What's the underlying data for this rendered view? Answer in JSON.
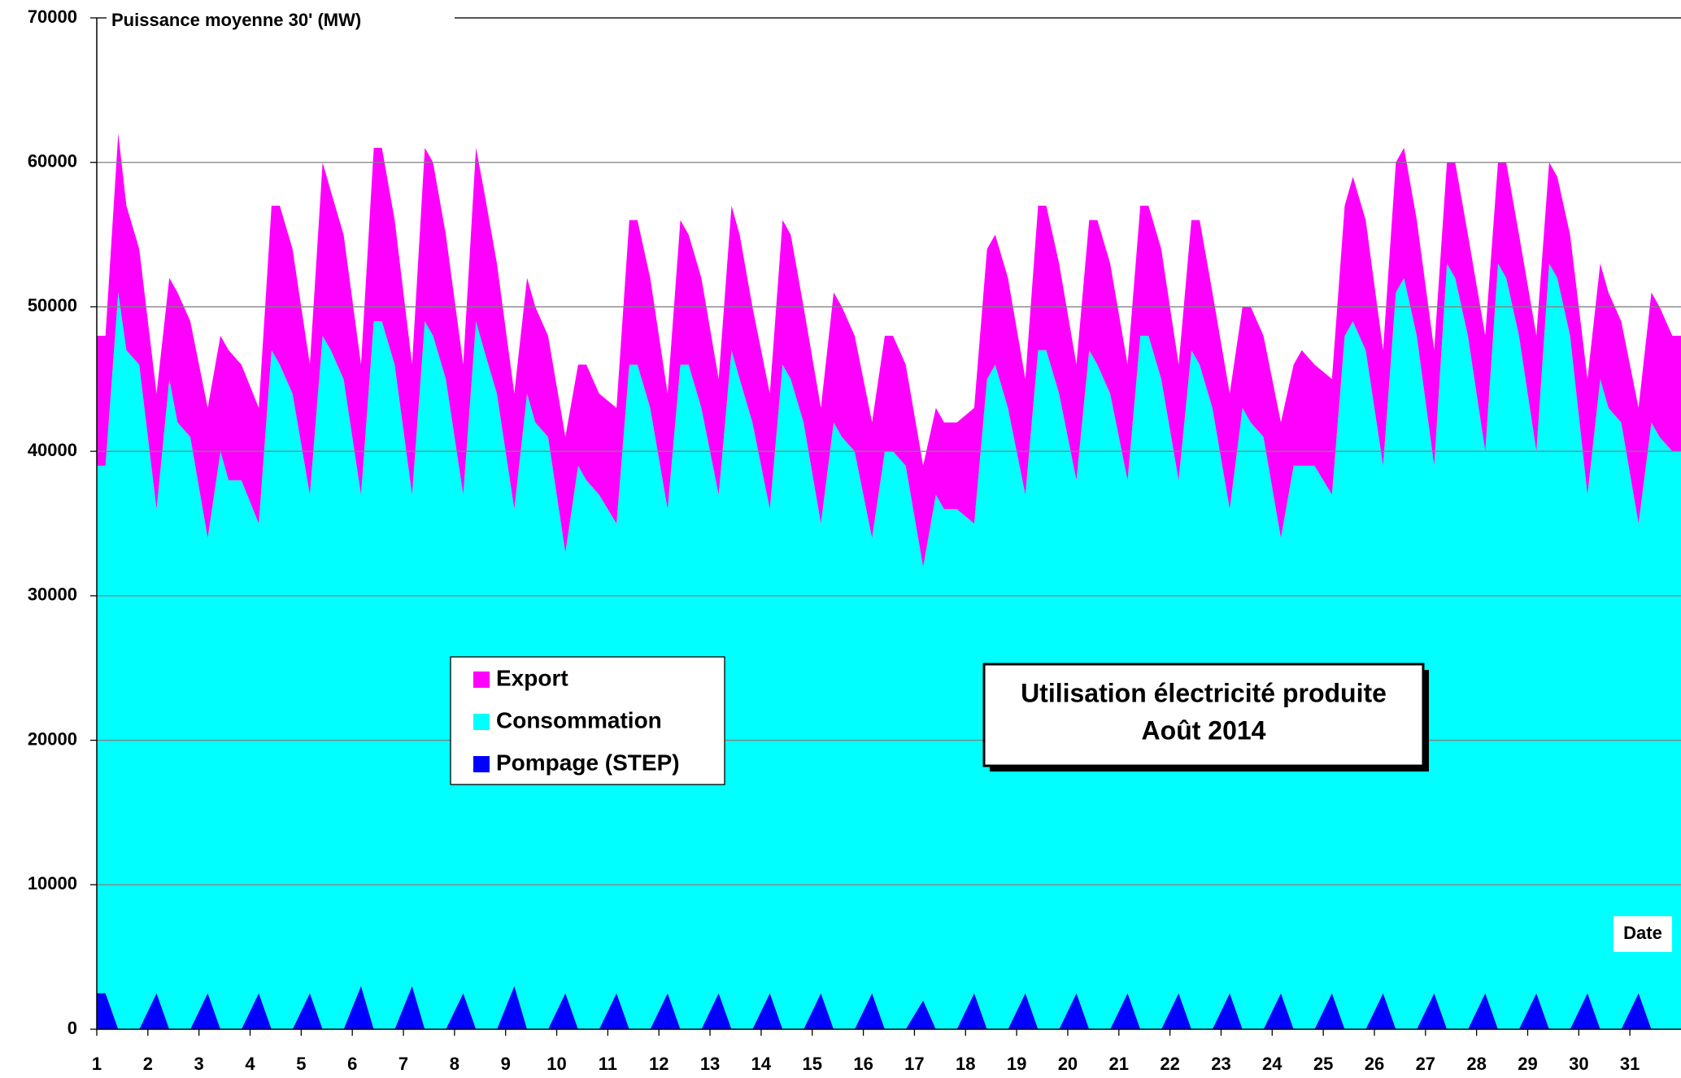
{
  "chart_data": {
    "type": "stacked-area",
    "title": "Utilisation électricité produite",
    "subtitle": "Août 2014",
    "y_label": "Puissance moyenne 30' (MW)",
    "x_label": "Date",
    "xlim": [
      1,
      32
    ],
    "xticks": [
      1,
      2,
      3,
      4,
      5,
      6,
      7,
      8,
      9,
      10,
      11,
      12,
      13,
      14,
      15,
      16,
      17,
      18,
      19,
      20,
      21,
      22,
      23,
      24,
      25,
      26,
      27,
      28,
      29,
      30,
      31
    ],
    "ylim": [
      0,
      70000
    ],
    "yticks": [
      0,
      10000,
      20000,
      30000,
      40000,
      50000,
      60000,
      70000
    ],
    "grid": true,
    "x": [
      1.17,
      1.42,
      1.58,
      1.83,
      2.17,
      2.42,
      2.58,
      2.83,
      3.17,
      3.42,
      3.58,
      3.83,
      4.17,
      4.42,
      4.58,
      4.83,
      5.17,
      5.42,
      5.58,
      5.83,
      6.17,
      6.42,
      6.58,
      6.83,
      7.17,
      7.42,
      7.58,
      7.83,
      8.17,
      8.42,
      8.58,
      8.83,
      9.17,
      9.42,
      9.58,
      9.83,
      10.17,
      10.42,
      10.58,
      10.83,
      11.17,
      11.42,
      11.58,
      11.83,
      12.17,
      12.42,
      12.58,
      12.83,
      13.17,
      13.42,
      13.58,
      13.83,
      14.17,
      14.42,
      14.58,
      14.83,
      15.17,
      15.42,
      15.58,
      15.83,
      16.17,
      16.42,
      16.58,
      16.83,
      17.17,
      17.42,
      17.58,
      17.83,
      18.17,
      18.42,
      18.58,
      18.83,
      19.17,
      19.42,
      19.58,
      19.83,
      20.17,
      20.42,
      20.58,
      20.83,
      21.17,
      21.42,
      21.58,
      21.83,
      22.17,
      22.42,
      22.58,
      22.83,
      23.17,
      23.42,
      23.58,
      23.83,
      24.17,
      24.42,
      24.58,
      24.83,
      25.17,
      25.42,
      25.58,
      25.83,
      26.17,
      26.42,
      26.58,
      26.83,
      27.17,
      27.42,
      27.58,
      27.83,
      28.17,
      28.42,
      28.58,
      28.83,
      29.17,
      29.42,
      29.58,
      29.83,
      30.17,
      30.42,
      30.58,
      30.83,
      31.17,
      31.42,
      31.58,
      31.83
    ],
    "series": [
      {
        "name": "Pompage (STEP)",
        "color": "#0000ff",
        "values": [
          2500,
          0,
          0,
          0,
          2500,
          0,
          0,
          0,
          2500,
          0,
          0,
          0,
          2500,
          0,
          0,
          0,
          2500,
          0,
          0,
          0,
          3000,
          0,
          0,
          0,
          3000,
          0,
          0,
          0,
          2500,
          0,
          0,
          0,
          3000,
          0,
          0,
          0,
          2500,
          0,
          0,
          0,
          2500,
          0,
          0,
          0,
          2500,
          0,
          0,
          0,
          2500,
          0,
          0,
          0,
          2500,
          0,
          0,
          0,
          2500,
          0,
          0,
          0,
          2500,
          0,
          0,
          0,
          2000,
          0,
          0,
          0,
          2500,
          0,
          0,
          0,
          2500,
          0,
          0,
          0,
          2500,
          0,
          0,
          0,
          2500,
          0,
          0,
          0,
          2500,
          0,
          0,
          0,
          2500,
          0,
          0,
          0,
          2500,
          0,
          0,
          0,
          2500,
          0,
          0,
          0,
          2500,
          0,
          0,
          0,
          2500,
          0,
          0,
          0,
          2500,
          0,
          0,
          0,
          2500,
          0,
          0,
          0,
          2500,
          0,
          0,
          0,
          2500,
          0,
          0,
          0
        ]
      },
      {
        "name": "Consommation",
        "color": "#00ffff",
        "values": [
          36500,
          51000,
          47000,
          46000,
          33500,
          45000,
          42000,
          41000,
          31500,
          40000,
          38000,
          38000,
          32500,
          47000,
          46000,
          44000,
          34500,
          48000,
          47000,
          45000,
          34000,
          49000,
          49000,
          46000,
          34000,
          49000,
          48000,
          45000,
          34500,
          49000,
          47000,
          44000,
          33000,
          44000,
          42000,
          41000,
          30500,
          39000,
          38000,
          37000,
          32500,
          46000,
          46000,
          43000,
          33500,
          46000,
          46000,
          43000,
          34500,
          47000,
          45000,
          42000,
          33500,
          46000,
          45000,
          42000,
          32500,
          42000,
          41000,
          40000,
          31500,
          40000,
          40000,
          39000,
          30000,
          37000,
          36000,
          36000,
          32500,
          45000,
          46000,
          43000,
          34500,
          47000,
          47000,
          44000,
          35500,
          47000,
          46000,
          44000,
          35500,
          48000,
          48000,
          45000,
          35500,
          47000,
          46000,
          43000,
          33500,
          43000,
          42000,
          41000,
          31500,
          39000,
          39000,
          39000,
          34500,
          48000,
          49000,
          47000,
          36500,
          51000,
          52000,
          48000,
          36500,
          53000,
          52000,
          48000,
          37500,
          53000,
          52000,
          48000,
          37500,
          53000,
          52000,
          48000,
          34500,
          45000,
          43000,
          42000,
          32500,
          42000,
          41000,
          40000
        ]
      },
      {
        "name": "Export",
        "color": "#ff00ff",
        "values": [
          9000,
          11000,
          10000,
          8000,
          8000,
          7000,
          9000,
          8000,
          9000,
          8000,
          9000,
          8000,
          8000,
          10000,
          11000,
          10000,
          9000,
          12000,
          11000,
          10000,
          9000,
          12000,
          12000,
          10000,
          9000,
          12000,
          12000,
          10000,
          9000,
          12000,
          11000,
          9000,
          8000,
          8000,
          8000,
          7000,
          8000,
          7000,
          8000,
          7000,
          8000,
          10000,
          10000,
          9000,
          8000,
          10000,
          9000,
          9000,
          8000,
          10000,
          10000,
          8000,
          8000,
          10000,
          10000,
          8000,
          8000,
          9000,
          9000,
          8000,
          8000,
          8000,
          8000,
          7000,
          7000,
          6000,
          6000,
          6000,
          8000,
          9000,
          9000,
          9000,
          8000,
          10000,
          10000,
          9000,
          8000,
          9000,
          10000,
          9000,
          8000,
          9000,
          9000,
          9000,
          8000,
          9000,
          10000,
          8000,
          8000,
          7000,
          8000,
          7000,
          8000,
          7000,
          8000,
          7000,
          8000,
          9000,
          10000,
          9000,
          8000,
          9000,
          9000,
          8000,
          8000,
          7000,
          8000,
          7000,
          8000,
          7000,
          8000,
          7000,
          8000,
          7000,
          7000,
          7000,
          8000,
          8000,
          8000,
          7000,
          8000,
          9000,
          9000,
          8000
        ]
      }
    ]
  }
}
